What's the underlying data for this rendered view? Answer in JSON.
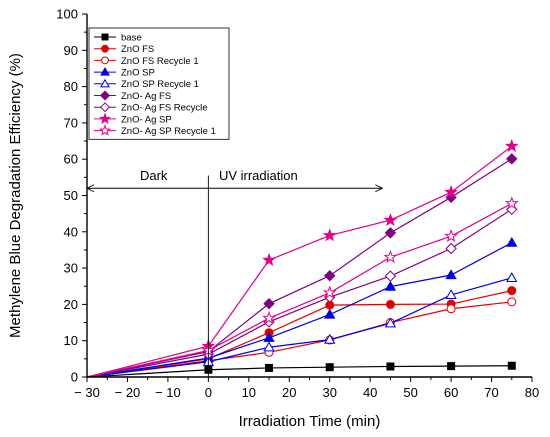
{
  "chart_data": {
    "type": "line",
    "xlabel": "Irradiation Time (min)",
    "ylabel": "Methylene Blue Degradation Efficiency (%)",
    "xlim": [
      -30,
      80
    ],
    "ylim": [
      0,
      100
    ],
    "xticks": [
      -30,
      -20,
      -10,
      0,
      10,
      20,
      30,
      40,
      50,
      60,
      70,
      80
    ],
    "yticks": [
      0,
      10,
      20,
      30,
      40,
      50,
      60,
      70,
      80,
      90,
      100
    ],
    "xtick_labels": [
      "− 30",
      "− 20",
      "− 10",
      "0",
      "10",
      "20",
      "30",
      "40",
      "50",
      "60",
      "70",
      "80"
    ],
    "ytick_labels": [
      "0",
      "10",
      "20",
      "30",
      "40",
      "50",
      "60",
      "70",
      "80",
      "90",
      "100"
    ],
    "grid": false,
    "legend_position": "top-left",
    "annotations": [
      {
        "text": "Dark",
        "x_from": 0,
        "x_to": -30,
        "y": 52
      },
      {
        "text": "UV irradiation",
        "x_from": 0,
        "x_to": 43,
        "y": 52
      }
    ],
    "series": [
      {
        "name": "base",
        "color": "#000000",
        "marker": "square",
        "filled": true,
        "x": [
          -30,
          0,
          15,
          30,
          45,
          60,
          75
        ],
        "y": [
          0,
          2,
          2.5,
          2.7,
          2.9,
          3,
          3.1
        ]
      },
      {
        "name": "ZnO FS",
        "color": "#e00000",
        "marker": "circle",
        "filled": true,
        "x": [
          -30,
          0,
          15,
          30,
          45,
          60,
          75
        ],
        "y": [
          0,
          5,
          12.2,
          19.8,
          20,
          20.1,
          23.8
        ]
      },
      {
        "name": "ZnO FS Recycle 1",
        "color": "#e00000",
        "marker": "circle",
        "filled": false,
        "x": [
          -30,
          0,
          15,
          30,
          45,
          60,
          75
        ],
        "y": [
          0,
          4.5,
          6.8,
          10.2,
          15,
          18.8,
          20.7
        ]
      },
      {
        "name": "ZnO SP",
        "color": "#0000e0",
        "marker": "triangle",
        "filled": true,
        "x": [
          -30,
          0,
          15,
          30,
          45,
          60,
          75
        ],
        "y": [
          0,
          5.2,
          10.8,
          17.2,
          24.9,
          28.1,
          37
        ]
      },
      {
        "name": "ZnO SP Recycle 1",
        "color": "#0000e0",
        "marker": "triangle",
        "filled": false,
        "x": [
          -30,
          0,
          15,
          30,
          45,
          60,
          75
        ],
        "y": [
          0,
          4.2,
          8.2,
          10.3,
          14.8,
          22.6,
          27.3
        ]
      },
      {
        "name": "ZnO- Ag FS",
        "color": "#800080",
        "marker": "diamond",
        "filled": true,
        "x": [
          -30,
          0,
          15,
          30,
          45,
          60,
          75
        ],
        "y": [
          0,
          7,
          20.2,
          27.9,
          39.7,
          49.5,
          60.1
        ]
      },
      {
        "name": "ZnO- Ag FS Recycle",
        "color": "#800080",
        "marker": "diamond",
        "filled": false,
        "x": [
          -30,
          0,
          15,
          30,
          45,
          60,
          75
        ],
        "y": [
          0,
          6.3,
          15.2,
          22,
          27.8,
          35.4,
          46.2
        ]
      },
      {
        "name": "ZnO- Ag SP",
        "color": "#e0008a",
        "marker": "star",
        "filled": true,
        "x": [
          -30,
          0,
          15,
          30,
          45,
          60,
          75
        ],
        "y": [
          0,
          8.5,
          32.2,
          39,
          43.2,
          50.9,
          63.6
        ]
      },
      {
        "name": "ZnO- Ag SP Recycle 1",
        "color": "#e0008a",
        "marker": "star",
        "filled": false,
        "x": [
          -30,
          0,
          15,
          30,
          45,
          60,
          75
        ],
        "y": [
          0,
          7.3,
          16.2,
          23.2,
          33,
          38.8,
          47.8
        ]
      }
    ]
  }
}
